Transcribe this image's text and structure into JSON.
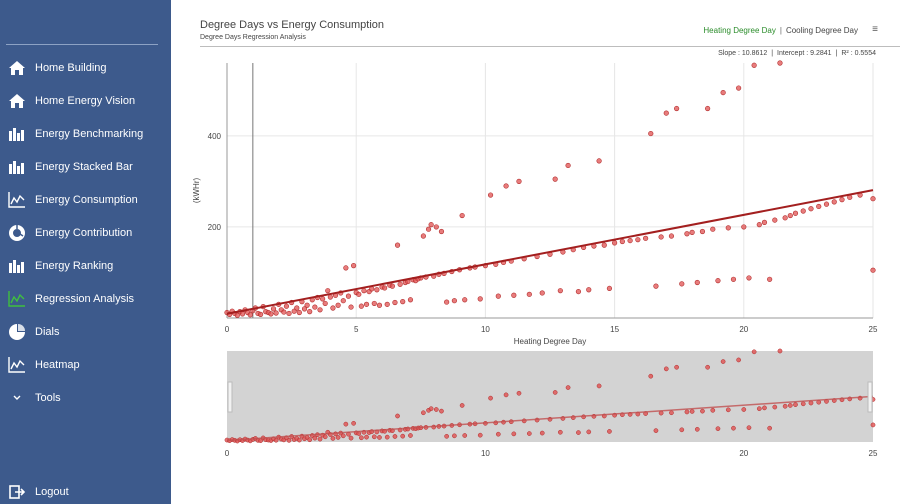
{
  "sidebar": {
    "items": [
      {
        "label": "Home Building",
        "icon": "home-icon",
        "active": false
      },
      {
        "label": "Home Energy Vision",
        "icon": "home-icon",
        "active": false
      },
      {
        "label": "Energy Benchmarking",
        "icon": "bar-chart-icon",
        "active": false
      },
      {
        "label": "Energy Stacked Bar",
        "icon": "bar-chart-icon",
        "active": false
      },
      {
        "label": "Energy Consumption",
        "icon": "line-chart-icon",
        "active": false
      },
      {
        "label": "Energy Contribution",
        "icon": "donut-chart-icon",
        "active": false
      },
      {
        "label": "Energy Ranking",
        "icon": "bar-chart-icon",
        "active": false
      },
      {
        "label": "Regression Analysis",
        "icon": "line-chart-icon",
        "active": true
      },
      {
        "label": "Dials",
        "icon": "pie-chart-icon",
        "active": false
      },
      {
        "label": "Heatmap",
        "icon": "line-chart-icon",
        "active": false
      },
      {
        "label": "Tools",
        "icon": "chevron-down-icon",
        "active": false
      }
    ],
    "logout_label": "Logout"
  },
  "header": {
    "title": "Degree Days vs Energy Consumption",
    "subtitle": "Degree Days Regression Analysis",
    "toggle_heating": "Heating Degree Day",
    "toggle_separator": "|",
    "toggle_cooling": "Cooling Degree Day",
    "menu_glyph": "≡"
  },
  "stats": {
    "slope": "Slope : 10.8612",
    "sep1": "|",
    "intercept": "Intercept : 9.2841",
    "sep2": "|",
    "r2": "R² : 0.5554"
  },
  "colors": {
    "sidebar": "#3d5a8c",
    "active_icon": "#3fbf3f",
    "point": "#e05050",
    "point_stroke": "#b02a2a",
    "trend": "#a31f1f",
    "toggle_active": "#2a8c2a",
    "navigator_bg": "#d3d3d3"
  },
  "chart_data": [
    {
      "type": "scatter",
      "xlabel": "Heating Degree Day",
      "ylabel": "(kWHr)",
      "xlim": [
        0,
        25
      ],
      "ylim": [
        0,
        560
      ],
      "x_ticks": [
        "0",
        "5",
        "10",
        "15",
        "20",
        "25"
      ],
      "y_ticks": [
        "200",
        "400"
      ],
      "y_tick_values": [
        200,
        400
      ],
      "grid": true,
      "trendline": {
        "slope": 10.8612,
        "intercept": 9.2841
      },
      "points": [
        [
          0.0,
          12
        ],
        [
          0.1,
          8
        ],
        [
          0.2,
          15
        ],
        [
          0.3,
          10
        ],
        [
          0.4,
          6
        ],
        [
          0.5,
          14
        ],
        [
          0.6,
          9
        ],
        [
          0.7,
          18
        ],
        [
          0.8,
          12
        ],
        [
          0.9,
          7
        ],
        [
          1.0,
          16
        ],
        [
          1.1,
          22
        ],
        [
          1.2,
          10
        ],
        [
          1.3,
          8
        ],
        [
          1.4,
          25
        ],
        [
          1.5,
          14
        ],
        [
          1.6,
          12
        ],
        [
          1.7,
          9
        ],
        [
          1.8,
          20
        ],
        [
          1.9,
          11
        ],
        [
          2.0,
          30
        ],
        [
          2.1,
          18
        ],
        [
          2.2,
          13
        ],
        [
          2.3,
          26
        ],
        [
          2.4,
          10
        ],
        [
          2.5,
          34
        ],
        [
          2.6,
          15
        ],
        [
          2.7,
          22
        ],
        [
          2.8,
          12
        ],
        [
          2.9,
          36
        ],
        [
          3.0,
          20
        ],
        [
          3.1,
          28
        ],
        [
          3.2,
          14
        ],
        [
          3.3,
          40
        ],
        [
          3.4,
          24
        ],
        [
          3.5,
          45
        ],
        [
          3.6,
          18
        ],
        [
          3.7,
          42
        ],
        [
          3.8,
          32
        ],
        [
          3.9,
          60
        ],
        [
          4.0,
          46
        ],
        [
          4.1,
          22
        ],
        [
          4.2,
          50
        ],
        [
          4.3,
          28
        ],
        [
          4.4,
          55
        ],
        [
          4.5,
          38
        ],
        [
          4.6,
          110
        ],
        [
          4.7,
          48
        ],
        [
          4.8,
          24
        ],
        [
          4.9,
          115
        ],
        [
          5.0,
          56
        ],
        [
          5.1,
          52
        ],
        [
          5.2,
          26
        ],
        [
          5.3,
          60
        ],
        [
          5.4,
          30
        ],
        [
          5.5,
          58
        ],
        [
          5.6,
          64
        ],
        [
          5.7,
          32
        ],
        [
          5.8,
          62
        ],
        [
          5.9,
          28
        ],
        [
          6.0,
          68
        ],
        [
          6.1,
          66
        ],
        [
          6.2,
          30
        ],
        [
          6.3,
          72
        ],
        [
          6.4,
          70
        ],
        [
          6.5,
          34
        ],
        [
          6.6,
          160
        ],
        [
          6.7,
          74
        ],
        [
          6.8,
          36
        ],
        [
          6.9,
          78
        ],
        [
          7.0,
          80
        ],
        [
          7.1,
          40
        ],
        [
          7.2,
          84
        ],
        [
          7.3,
          82
        ],
        [
          7.4,
          86
        ],
        [
          7.5,
          88
        ],
        [
          7.6,
          180
        ],
        [
          7.7,
          90
        ],
        [
          7.8,
          195
        ],
        [
          7.9,
          205
        ],
        [
          8.0,
          92
        ],
        [
          8.1,
          200
        ],
        [
          8.2,
          96
        ],
        [
          8.3,
          190
        ],
        [
          8.4,
          98
        ],
        [
          8.5,
          35
        ],
        [
          8.7,
          102
        ],
        [
          8.8,
          38
        ],
        [
          9.0,
          106
        ],
        [
          9.1,
          225
        ],
        [
          9.2,
          40
        ],
        [
          9.4,
          110
        ],
        [
          9.6,
          112
        ],
        [
          9.8,
          42
        ],
        [
          10.0,
          115
        ],
        [
          10.2,
          270
        ],
        [
          10.4,
          118
        ],
        [
          10.5,
          48
        ],
        [
          10.7,
          122
        ],
        [
          10.8,
          290
        ],
        [
          11.0,
          125
        ],
        [
          11.1,
          50
        ],
        [
          11.3,
          300
        ],
        [
          11.5,
          130
        ],
        [
          11.7,
          52
        ],
        [
          12.0,
          135
        ],
        [
          12.2,
          55
        ],
        [
          12.5,
          140
        ],
        [
          12.7,
          305
        ],
        [
          12.9,
          60
        ],
        [
          13.0,
          145
        ],
        [
          13.2,
          335
        ],
        [
          13.4,
          150
        ],
        [
          13.6,
          58
        ],
        [
          13.8,
          155
        ],
        [
          14.0,
          62
        ],
        [
          14.2,
          158
        ],
        [
          14.4,
          345
        ],
        [
          14.6,
          160
        ],
        [
          14.8,
          65
        ],
        [
          15.0,
          165
        ],
        [
          15.3,
          168
        ],
        [
          15.6,
          170
        ],
        [
          15.9,
          172
        ],
        [
          16.2,
          175
        ],
        [
          16.4,
          405
        ],
        [
          16.6,
          70
        ],
        [
          16.8,
          178
        ],
        [
          17.0,
          450
        ],
        [
          17.2,
          180
        ],
        [
          17.4,
          460
        ],
        [
          17.6,
          75
        ],
        [
          17.8,
          185
        ],
        [
          18.0,
          188
        ],
        [
          18.2,
          78
        ],
        [
          18.4,
          190
        ],
        [
          18.6,
          460
        ],
        [
          18.8,
          195
        ],
        [
          19.0,
          82
        ],
        [
          19.2,
          495
        ],
        [
          19.4,
          198
        ],
        [
          19.6,
          85
        ],
        [
          19.8,
          505
        ],
        [
          20.0,
          200
        ],
        [
          20.2,
          88
        ],
        [
          20.4,
          555
        ],
        [
          20.6,
          205
        ],
        [
          20.8,
          210
        ],
        [
          21.0,
          85
        ],
        [
          21.2,
          215
        ],
        [
          21.4,
          560
        ],
        [
          21.6,
          220
        ],
        [
          21.8,
          225
        ],
        [
          22.0,
          230
        ],
        [
          22.3,
          235
        ],
        [
          22.6,
          240
        ],
        [
          22.9,
          245
        ],
        [
          23.2,
          250
        ],
        [
          23.5,
          255
        ],
        [
          23.8,
          260
        ],
        [
          24.1,
          265
        ],
        [
          24.5,
          270
        ],
        [
          25.0,
          262
        ],
        [
          25.0,
          105
        ]
      ]
    },
    {
      "type": "scatter",
      "role": "navigator",
      "xlim": [
        0,
        25
      ],
      "x_ticks": [
        "0",
        "10",
        "20",
        "25"
      ]
    }
  ]
}
